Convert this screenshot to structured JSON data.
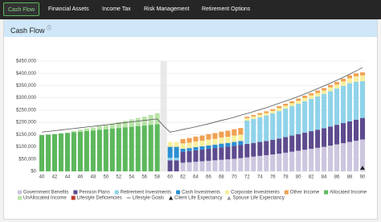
{
  "nav": {
    "tabs": [
      "Cash Flow",
      "Financial Assets",
      "Income Tax",
      "Risk Management",
      "Retirement Options"
    ],
    "active_tab": 0
  },
  "panel": {
    "title": "Cash Flow"
  },
  "chart_data": {
    "type": "bar",
    "stacked": true,
    "x": [
      40,
      41,
      42,
      43,
      44,
      45,
      46,
      47,
      48,
      49,
      50,
      51,
      52,
      53,
      54,
      55,
      56,
      57,
      58,
      59,
      60,
      61,
      62,
      63,
      64,
      65,
      66,
      67,
      68,
      69,
      70,
      71,
      72,
      73,
      74,
      75,
      76,
      77,
      78,
      79,
      80,
      81,
      82,
      83,
      84,
      85,
      86,
      87,
      88,
      89,
      90
    ],
    "xlim": [
      39.5,
      90.5
    ],
    "xticks": [
      40,
      42,
      44,
      46,
      48,
      50,
      52,
      54,
      56,
      58,
      60,
      62,
      64,
      66,
      68,
      70,
      72,
      74,
      76,
      78,
      80,
      82,
      84,
      86,
      88,
      90
    ],
    "ylim": [
      0,
      450000
    ],
    "yticks": [
      {
        "value": 0,
        "label": "$0"
      },
      {
        "value": 50000,
        "label": "$50,000"
      },
      {
        "value": 100000,
        "label": "$100,000"
      },
      {
        "value": 150000,
        "label": "$150,000"
      },
      {
        "value": 200000,
        "label": "$200,000"
      },
      {
        "value": 250000,
        "label": "$250,000"
      },
      {
        "value": 300000,
        "label": "$300,000"
      },
      {
        "value": 350000,
        "label": "$350,000"
      },
      {
        "value": 400000,
        "label": "$400,000"
      },
      {
        "value": 450000,
        "label": "$450,000"
      }
    ],
    "grid": true,
    "shaded_x": 59,
    "series": [
      {
        "name": "Government Benefits",
        "color": "#cdc6df",
        "values": [
          null,
          null,
          null,
          null,
          null,
          null,
          null,
          null,
          null,
          null,
          null,
          null,
          null,
          null,
          null,
          null,
          null,
          null,
          null,
          null,
          null,
          null,
          35000,
          37000,
          39000,
          41000,
          43000,
          45000,
          47000,
          49000,
          51000,
          54000,
          57000,
          60000,
          63000,
          66000,
          69000,
          72000,
          76000,
          80000,
          84000,
          88000,
          92000,
          96000,
          100000,
          105000,
          110000,
          115000,
          120000,
          125000,
          130000
        ]
      },
      {
        "name": "Pension Plans",
        "color": "#5d4b8e",
        "values": [
          null,
          null,
          null,
          null,
          null,
          null,
          null,
          null,
          null,
          null,
          null,
          null,
          null,
          null,
          null,
          null,
          null,
          null,
          null,
          null,
          45000,
          45000,
          45000,
          46000,
          47000,
          48000,
          49000,
          50000,
          51000,
          52000,
          53000,
          54000,
          55000,
          56000,
          57000,
          58000,
          60000,
          62000,
          64000,
          66000,
          68000,
          70000,
          72000,
          74000,
          76000,
          78000,
          80000,
          82000,
          84000,
          86000,
          88000
        ]
      },
      {
        "name": "Retirement Investments",
        "color": "#8fd3ea",
        "values": [
          null,
          null,
          null,
          null,
          null,
          null,
          null,
          null,
          null,
          null,
          null,
          null,
          null,
          null,
          null,
          null,
          null,
          null,
          null,
          null,
          10000,
          10000,
          null,
          null,
          null,
          null,
          null,
          null,
          null,
          null,
          null,
          null,
          95000,
          98000,
          101000,
          104000,
          108000,
          112000,
          116000,
          120000,
          124000,
          128000,
          132000,
          136000,
          140000,
          144000,
          148000,
          152000,
          156000,
          155000,
          150000
        ]
      },
      {
        "name": "Cash Investments",
        "color": "#2b8fd2",
        "values": [
          null,
          null,
          null,
          null,
          null,
          null,
          null,
          null,
          null,
          null,
          null,
          null,
          null,
          null,
          null,
          null,
          null,
          null,
          null,
          null,
          45000,
          45000,
          12000,
          12000,
          13000,
          13000,
          14000,
          14000,
          15000,
          15000,
          16000,
          16000,
          null,
          null,
          null,
          null,
          null,
          null,
          null,
          null,
          null,
          null,
          null,
          null,
          null,
          null,
          null,
          null,
          null,
          null,
          null
        ]
      },
      {
        "name": "Corporate Investments",
        "color": "#f7ef9f",
        "values": [
          null,
          null,
          null,
          null,
          null,
          null,
          null,
          null,
          null,
          null,
          null,
          null,
          null,
          null,
          null,
          null,
          null,
          null,
          null,
          null,
          20000,
          20000,
          22000,
          22000,
          23000,
          23000,
          24000,
          24000,
          25000,
          25000,
          26000,
          26000,
          10000,
          10000,
          10000,
          10000,
          10000,
          12000,
          12000,
          12000,
          12000,
          14000,
          14000,
          14000,
          14000,
          16000,
          16000,
          18000,
          20000,
          22000,
          24000
        ]
      },
      {
        "name": "Other Income",
        "color": "#f0a052",
        "values": [
          null,
          null,
          null,
          null,
          null,
          null,
          null,
          null,
          null,
          null,
          null,
          null,
          null,
          null,
          null,
          null,
          null,
          null,
          null,
          null,
          null,
          null,
          18000,
          19000,
          20000,
          21000,
          22000,
          23000,
          24000,
          25000,
          26000,
          27000,
          6000,
          6000,
          7000,
          7000,
          7000,
          8000,
          8000,
          8000,
          9000,
          9000,
          9000,
          10000,
          10000,
          10000,
          11000,
          11000,
          12000,
          12000,
          12000
        ]
      },
      {
        "name": "Allocated Income",
        "color": "#5cb85c",
        "values": [
          148000,
          150000,
          152000,
          155000,
          157000,
          160000,
          162000,
          165000,
          167000,
          170000,
          172000,
          175000,
          177000,
          180000,
          182000,
          185000,
          187000,
          190000,
          192000,
          null,
          null,
          null,
          null,
          null,
          null,
          null,
          null,
          null,
          null,
          null,
          null,
          null,
          null,
          null,
          null,
          null,
          null,
          null,
          null,
          null,
          null,
          null,
          null,
          null,
          null,
          null,
          null,
          null,
          null,
          null,
          null
        ]
      },
      {
        "name": "UnAllocated Income",
        "color": "#b9e3a9",
        "values": [
          null,
          null,
          null,
          null,
          null,
          5000,
          8000,
          10000,
          12000,
          15000,
          18000,
          20000,
          23000,
          26000,
          30000,
          33000,
          36000,
          40000,
          45000,
          null,
          null,
          null,
          null,
          null,
          null,
          null,
          null,
          null,
          null,
          null,
          null,
          null,
          null,
          null,
          null,
          null,
          null,
          null,
          null,
          null,
          null,
          null,
          null,
          null,
          null,
          null,
          null,
          null,
          null,
          null,
          null
        ]
      },
      {
        "name": "Lifestyle Deficiencies",
        "color": "#c0392b",
        "values": [
          null,
          null,
          null,
          null,
          null,
          null,
          null,
          null,
          null,
          null,
          null,
          null,
          null,
          null,
          null,
          null,
          null,
          null,
          null,
          null,
          null,
          null,
          null,
          null,
          null,
          null,
          null,
          null,
          null,
          null,
          null,
          null,
          null,
          null,
          null,
          null,
          null,
          null,
          null,
          null,
          null,
          null,
          null,
          null,
          null,
          null,
          null,
          null,
          null,
          null,
          null
        ]
      },
      {
        "name": "Lifestyle Goals",
        "type": "line",
        "color": "#555555",
        "values": [
          160000,
          163000,
          166000,
          169000,
          172000,
          175000,
          178000,
          181000,
          184000,
          187000,
          190000,
          193000,
          196000,
          199000,
          202000,
          205000,
          208000,
          211000,
          214000,
          185000,
          160000,
          165000,
          171000,
          176000,
          182000,
          188000,
          194000,
          201000,
          208000,
          214000,
          221000,
          229000,
          236000,
          244000,
          252000,
          260000,
          269000,
          278000,
          287000,
          296000,
          306000,
          316000,
          327000,
          338000,
          349000,
          360000,
          372000,
          384000,
          397000,
          410000,
          424000
        ]
      }
    ],
    "markers": [
      {
        "name": "Client Life Expectancy",
        "x": 90,
        "color": "#222222"
      },
      {
        "name": "Spouse Life Expectancy",
        "color": "#999999"
      }
    ]
  }
}
